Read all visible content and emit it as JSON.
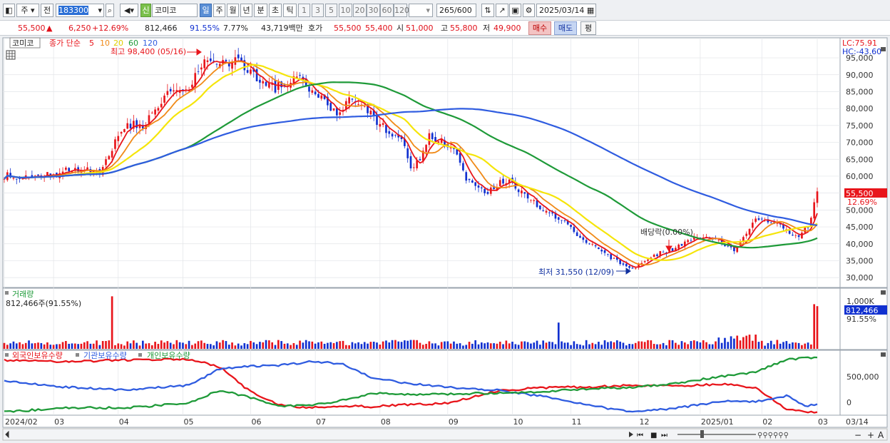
{
  "toolbar": {
    "tab_ju": "주",
    "tab_jeon": "전",
    "code": "183300",
    "shin_badge": "신",
    "stock_name": "코미코",
    "periods": [
      "일",
      "주",
      "월",
      "년",
      "분",
      "초",
      "틱"
    ],
    "nums": [
      "1",
      "3",
      "5",
      "10",
      "20",
      "30",
      "60",
      "120"
    ],
    "count": "265",
    "count_total": "/600",
    "date": "2025/03/14"
  },
  "quote": {
    "price": "55,500",
    "change_symbol": "▲",
    "change": "6,250",
    "change_pct": "+12.69%",
    "volume": "812,466",
    "volume_pct": "91.55%",
    "turnover": "7.77%",
    "amount": "43,719백만",
    "hoga_label": "호가",
    "ask": "55,500",
    "bid": "55,400",
    "open_label": "시",
    "open": "51,000",
    "high_label": "고",
    "high": "55,800",
    "low_label": "저",
    "low": "49,900",
    "buy_label": "매수",
    "sell_label": "매도",
    "eval_label": "평"
  },
  "chart_data": {
    "type": "candlestick",
    "price_panel": {
      "stock_label": "코미코",
      "legend_prefix": "종가 단순",
      "ma_periods": [
        "5",
        "10",
        "20",
        "60",
        "120"
      ],
      "ma_colors": [
        "#e8151b",
        "#f08a18",
        "#f5e50a",
        "#1e9a38",
        "#2f5ce0"
      ],
      "ylim": [
        27500,
        100500
      ],
      "yticks": [
        95000,
        90000,
        85000,
        80000,
        75000,
        70000,
        65000,
        60000,
        55000,
        50000,
        45000,
        40000,
        35000,
        30000
      ],
      "ytick_labels": [
        "95,000",
        "90,000",
        "85,000",
        "80,000",
        "75,000",
        "70,000",
        "65,000",
        "60,000",
        "55,000",
        "50,000",
        "45,000",
        "40,000",
        "35,000",
        "30,000"
      ],
      "lc_label": "LC:75.91",
      "hc_label": "HC:-43.60",
      "last_price_label": "55,500",
      "last_pct_label": "12.69%",
      "last_price": 55500,
      "high_annotation": "최고 98,400 (05/16)",
      "high_value": 98400,
      "low_annotation": "최저 31,550 (12/09)",
      "low_value": 31550,
      "dividend_annotation": "배당락(0.00%)"
    },
    "volume_panel": {
      "title": "거래량",
      "info": "812,466주(91.55%)",
      "ytick_label": "1,000K",
      "last_label": "812,466",
      "pct_label": "91.55%",
      "ylim": [
        0,
        1100000
      ]
    },
    "holding_panel": {
      "series": [
        {
          "name": "외국인보유수량",
          "color": "#e8151b"
        },
        {
          "name": "기관보유수량",
          "color": "#2f5ce0"
        },
        {
          "name": "개인보유수량",
          "color": "#1e9a38"
        }
      ],
      "ytick_labels": [
        "500,000",
        "0"
      ]
    },
    "x_labels": [
      "2024/02",
      "03",
      "04",
      "05",
      "06",
      "07",
      "08",
      "09",
      "10",
      "11",
      "12",
      "2025/01",
      "02",
      "03"
    ],
    "x_label_right": "03/14",
    "sessions": 265
  }
}
